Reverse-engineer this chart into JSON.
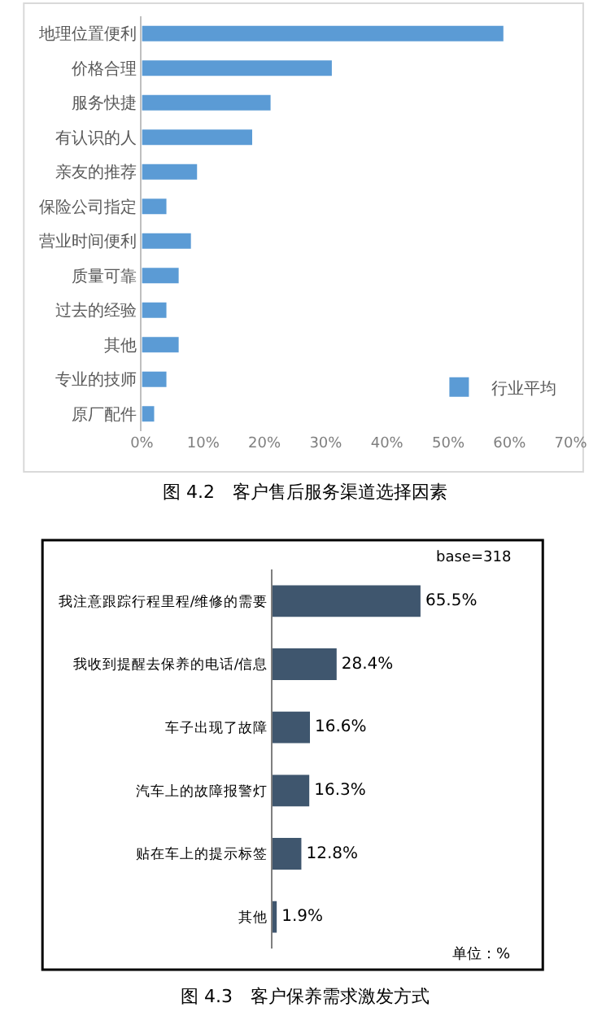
{
  "chart_data": [
    {
      "type": "bar",
      "orientation": "horizontal",
      "title": "图 4.2　客户售后服务渠道选择因素",
      "categories": [
        "地理位置便利",
        "价格合理",
        "服务快捷",
        "有认识的人",
        "亲友的推荐",
        "保险公司指定",
        "营业时间便利",
        "质量可靠",
        "过去的经验",
        "其他",
        "专业的技师",
        "原厂配件"
      ],
      "series": [
        {
          "name": "行业平均",
          "color": "#5b9bd5",
          "values": [
            59,
            31,
            21,
            18,
            9,
            4,
            8,
            6,
            4,
            6,
            4,
            2
          ]
        }
      ],
      "xlim": [
        0,
        70
      ],
      "xticks": [
        {
          "value": 0,
          "label": "0%"
        },
        {
          "value": 10,
          "label": "10%"
        },
        {
          "value": 20,
          "label": "20%"
        },
        {
          "value": 30,
          "label": "30%"
        },
        {
          "value": 40,
          "label": "40%"
        },
        {
          "value": 50,
          "label": "50%"
        },
        {
          "value": 60,
          "label": "60%"
        },
        {
          "value": 70,
          "label": "70%"
        }
      ],
      "legend": "bottom right",
      "grid": false
    },
    {
      "type": "bar",
      "orientation": "horizontal",
      "title": "图 4.3　客户保养需求激发方式",
      "categories": [
        "我注意跟踪行程里程/维修的需要",
        "我收到提醒去保养的电话/信息",
        "车子出现了故障",
        "汽车上的故障报警灯",
        "贴在车上的提示标签",
        "其他"
      ],
      "series": [
        {
          "color": "#3f566e",
          "values": [
            65.5,
            28.4,
            16.6,
            16.3,
            12.8,
            1.9
          ],
          "value_labels": [
            "65.5%",
            "28.4%",
            "16.6%",
            "16.3%",
            "12.8%",
            "1.9%"
          ]
        }
      ],
      "annotations": [
        "base=318",
        "单位：%"
      ]
    }
  ]
}
